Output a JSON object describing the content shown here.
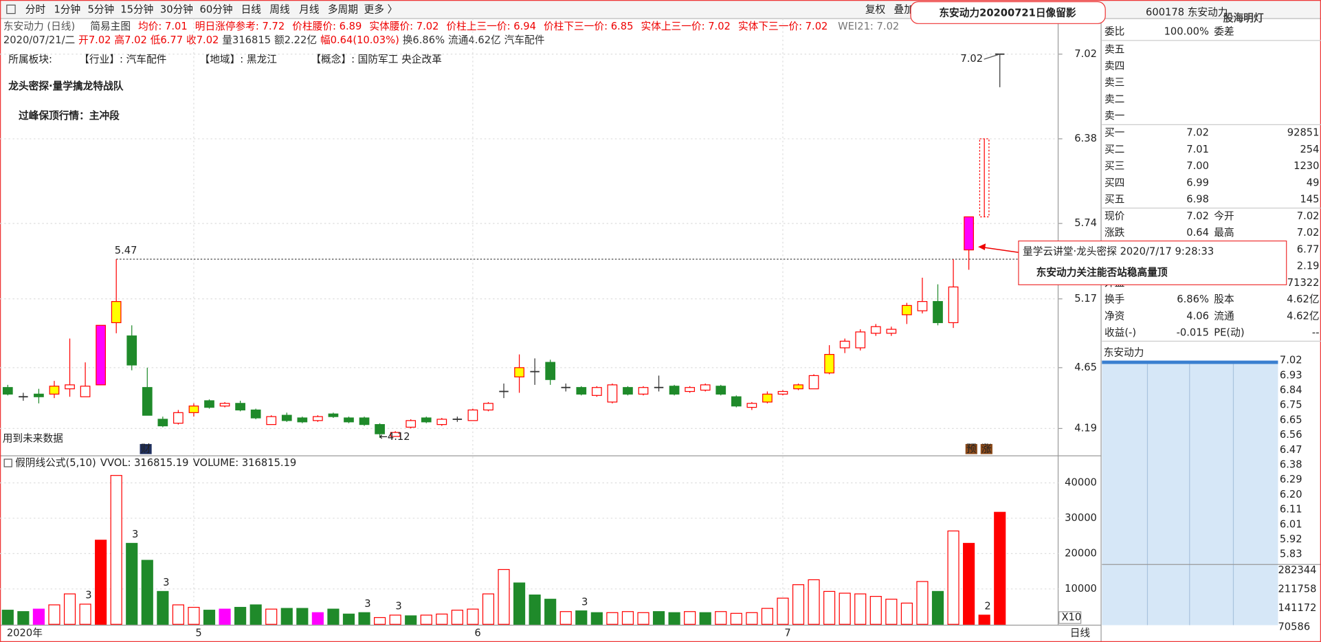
{
  "toolbar": {
    "periods": [
      "分时",
      "1分钟",
      "5分钟",
      "15分钟",
      "30分钟",
      "60分钟",
      "日线",
      "周线",
      "月线",
      "多周期",
      "更多 〉"
    ],
    "active": 6,
    "right": [
      "复权",
      "叠加"
    ]
  },
  "stamp": "东安动力20200721日像留影",
  "code": "600178 东安动力",
  "watermark": "股海明灯",
  "header": {
    "name": "东安动力 (日线)",
    "template": "简易主图",
    "indicators": [
      "均价: 7.01",
      "明日涨停参考: 7.72",
      "价柱腰价: 6.89",
      "实体腰价: 7.02",
      "价柱上三一价: 6.94",
      "价柱下三一价: 6.85",
      "实体上三一价: 7.02",
      "实体下三一价: 7.02"
    ],
    "wei": "WEI21: 7.02",
    "bar_info": [
      {
        "text": "2020/07/21/二",
        "color": "#333"
      },
      {
        "text": "开7.02",
        "color": "#e00"
      },
      {
        "text": "高7.02",
        "color": "#e00"
      },
      {
        "text": "低6.77",
        "color": "#e00"
      },
      {
        "text": "收7.02",
        "color": "#e00"
      },
      {
        "text": "量316815",
        "color": "#333"
      },
      {
        "text": "额2.22亿",
        "color": "#333"
      },
      {
        "text": "幅0.64(10.03%)",
        "color": "#e00"
      },
      {
        "text": "换6.86%",
        "color": "#333"
      },
      {
        "text": "流通4.62亿",
        "color": "#333"
      },
      {
        "text": "汽车配件",
        "color": "#333"
      }
    ],
    "sector": [
      "所属板块:",
      "【行业】: 汽车配件",
      "【地域】: 黑龙江",
      "【概念】: 国防军工 央企改革"
    ]
  },
  "headline": [
    "龙头密探·量学擒龙特战队",
    "过峰保顶行情：主冲段"
  ],
  "candles": {
    "open": [
      4.5,
      4.43,
      4.45,
      4.45,
      4.49,
      4.43,
      4.52,
      4.99,
      4.89,
      4.5,
      4.26,
      4.23,
      4.31,
      4.4,
      4.36,
      4.38,
      4.33,
      4.22,
      4.29,
      4.27,
      4.25,
      4.3,
      4.27,
      4.27,
      4.22,
      4.13,
      4.2,
      4.27,
      4.22,
      4.26,
      4.25,
      4.33,
      4.47,
      4.58,
      4.62,
      4.69,
      4.5,
      4.5,
      4.44,
      4.39,
      4.5,
      4.45,
      4.5,
      4.51,
      4.47,
      4.48,
      4.51,
      4.43,
      4.35,
      4.39,
      4.45,
      4.49,
      4.49,
      4.61,
      4.8,
      4.8,
      4.91,
      4.91,
      5.05,
      5.08,
      5.15,
      4.99,
      5.54,
      5.79,
      7.02
    ],
    "close": [
      4.45,
      4.43,
      4.43,
      4.51,
      4.52,
      4.51,
      4.97,
      5.15,
      4.67,
      4.29,
      4.21,
      4.31,
      4.36,
      4.35,
      4.38,
      4.33,
      4.27,
      4.28,
      4.25,
      4.24,
      4.28,
      4.28,
      4.24,
      4.22,
      4.15,
      4.16,
      4.25,
      4.24,
      4.26,
      4.26,
      4.33,
      4.38,
      4.47,
      4.65,
      4.62,
      4.56,
      4.5,
      4.45,
      4.5,
      4.52,
      4.45,
      4.5,
      4.5,
      4.45,
      4.5,
      4.52,
      4.45,
      4.36,
      4.38,
      4.45,
      4.47,
      4.52,
      4.59,
      4.75,
      4.85,
      4.92,
      4.96,
      4.94,
      5.12,
      5.15,
      4.99,
      5.26,
      5.79,
      6.38,
      7.02
    ],
    "high": [
      4.52,
      4.46,
      4.49,
      4.55,
      4.87,
      4.69,
      4.97,
      5.47,
      4.97,
      4.65,
      4.28,
      4.33,
      4.38,
      4.41,
      4.39,
      4.4,
      4.34,
      4.29,
      4.31,
      4.28,
      4.29,
      4.31,
      4.28,
      4.28,
      4.23,
      4.17,
      4.26,
      4.28,
      4.27,
      4.28,
      4.34,
      4.39,
      4.53,
      4.75,
      4.72,
      4.71,
      4.53,
      4.51,
      4.51,
      4.53,
      4.51,
      4.51,
      4.59,
      4.52,
      4.51,
      4.53,
      4.52,
      4.44,
      4.39,
      4.47,
      4.48,
      4.53,
      4.6,
      4.82,
      4.87,
      4.94,
      4.98,
      4.96,
      5.14,
      5.33,
      5.28,
      5.47,
      5.79,
      6.38,
      7.02
    ],
    "low": [
      4.44,
      4.4,
      4.38,
      4.42,
      4.43,
      4.43,
      4.52,
      4.91,
      4.63,
      4.29,
      4.2,
      4.22,
      4.28,
      4.34,
      4.35,
      4.32,
      4.26,
      4.22,
      4.24,
      4.23,
      4.24,
      4.27,
      4.23,
      4.21,
      4.12,
      4.13,
      4.19,
      4.23,
      4.21,
      4.24,
      4.25,
      4.32,
      4.42,
      4.46,
      4.52,
      4.52,
      4.47,
      4.44,
      4.43,
      4.38,
      4.44,
      4.44,
      4.47,
      4.44,
      4.46,
      4.47,
      4.44,
      4.35,
      4.33,
      4.38,
      4.44,
      4.48,
      4.49,
      4.6,
      4.76,
      4.78,
      4.89,
      4.89,
      4.98,
      5.06,
      4.97,
      4.95,
      5.39,
      5.79,
      6.77
    ],
    "body_style": [
      "down",
      "flat",
      "down",
      "yellow",
      "up",
      "up",
      "magenta",
      "yellow",
      "down",
      "down",
      "down",
      "up",
      "yellow",
      "down",
      "up",
      "down",
      "down",
      "up",
      "down",
      "down",
      "up",
      "down",
      "down",
      "down",
      "down",
      "up",
      "up",
      "down",
      "up",
      "flat",
      "up",
      "up",
      "flat",
      "yellow",
      "flat",
      "down",
      "flat",
      "down",
      "up",
      "up",
      "down",
      "up",
      "flat",
      "down",
      "up",
      "up",
      "down",
      "down",
      "up",
      "yellow",
      "up",
      "yellow",
      "up",
      "yellow",
      "up",
      "up",
      "up",
      "up",
      "yellow",
      "up",
      "down",
      "up",
      "magenta",
      "dashed",
      "flat"
    ],
    "style_colors": {
      "up": "#ff0000",
      "down": "#1f8a2a",
      "yellow": "#ffff00",
      "magenta": "#ff00ff",
      "dashed": "#ff0000",
      "flat": "#333333"
    },
    "ylim": [
      3.99,
      7.27
    ],
    "yticks": [
      4.19,
      4.65,
      5.17,
      5.74,
      6.38,
      7.02
    ],
    "peak": 5.47,
    "low_label": "←4.12",
    "future_note": "用到未来数据",
    "icons": [
      "财",
      "预",
      "涨"
    ]
  },
  "volume": {
    "title": "假阴线公式(5,10)",
    "vvol": "VVOL: 316815.19",
    "vol": "VOLUME: 316815.19",
    "unit": "X10",
    "values": [
      4000,
      3600,
      4300,
      5500,
      8600,
      5700,
      23800,
      42100,
      22900,
      18100,
      9300,
      5500,
      4800,
      4000,
      4300,
      4800,
      5500,
      4300,
      4500,
      4500,
      3300,
      4300,
      2900,
      3300,
      1900,
      2600,
      2400,
      2600,
      2900,
      4000,
      4300,
      8600,
      15500,
      11700,
      8300,
      7100,
      3600,
      3800,
      3300,
      3300,
      3600,
      3300,
      3600,
      3300,
      3600,
      3300,
      3600,
      3100,
      3300,
      4500,
      7400,
      11200,
      12600,
      9300,
      8800,
      8600,
      7900,
      7100,
      6000,
      12100,
      9300,
      26400,
      22900,
      2600,
      31682
    ],
    "colors": [
      "#1f8a2a",
      "#1f8a2a",
      "#ff00ff",
      "#ff0000",
      "#ff0000",
      "#ff0000",
      "#ff0000",
      "#ff0000",
      "#1f8a2a",
      "#1f8a2a",
      "#1f8a2a",
      "#ff0000",
      "#ff0000",
      "#1f8a2a",
      "#ff00ff",
      "#1f8a2a",
      "#1f8a2a",
      "#ff0000",
      "#1f8a2a",
      "#1f8a2a",
      "#ff00ff",
      "#1f8a2a",
      "#1f8a2a",
      "#1f8a2a",
      "#ff0000",
      "#ff0000",
      "#1f8a2a",
      "#ff0000",
      "#ff0000",
      "#ff0000",
      "#ff0000",
      "#ff0000",
      "#ff0000",
      "#1f8a2a",
      "#1f8a2a",
      "#1f8a2a",
      "#ff0000",
      "#1f8a2a",
      "#1f8a2a",
      "#ff0000",
      "#ff0000",
      "#ff0000",
      "#1f8a2a",
      "#1f8a2a",
      "#ff0000",
      "#1f8a2a",
      "#ff0000",
      "#ff0000",
      "#ff0000",
      "#ff0000",
      "#ff0000",
      "#ff0000",
      "#ff0000",
      "#ff0000",
      "#ff0000",
      "#ff0000",
      "#ff0000",
      "#ff0000",
      "#ff0000",
      "#ff0000",
      "#1f8a2a",
      "#ff0000",
      "#ff0000",
      "#ff0000",
      "#ff0000"
    ],
    "hollow": [
      false,
      false,
      false,
      true,
      true,
      true,
      false,
      true,
      false,
      false,
      false,
      true,
      true,
      false,
      false,
      false,
      false,
      true,
      false,
      false,
      false,
      false,
      false,
      false,
      true,
      true,
      false,
      true,
      true,
      true,
      true,
      true,
      true,
      false,
      false,
      false,
      true,
      false,
      false,
      true,
      true,
      true,
      false,
      false,
      true,
      false,
      true,
      true,
      true,
      true,
      true,
      true,
      true,
      true,
      true,
      true,
      true,
      true,
      true,
      true,
      false,
      true,
      false,
      false,
      false
    ],
    "ylim": [
      0,
      46700
    ],
    "yticks": [
      10000,
      20000,
      30000,
      40000
    ],
    "annotations": [
      {
        "index": 5,
        "text": "3"
      },
      {
        "index": 8,
        "text": "3"
      },
      {
        "index": 10,
        "text": "3"
      },
      {
        "index": 23,
        "text": "3"
      },
      {
        "index": 25,
        "text": "3"
      },
      {
        "index": 37,
        "text": "3"
      },
      {
        "index": 63,
        "text": "2"
      }
    ]
  },
  "x_labels": [
    {
      "index": 0,
      "label": "2020年"
    },
    {
      "index": 12,
      "label": "5"
    },
    {
      "index": 30,
      "label": "6"
    },
    {
      "index": 50,
      "label": "7"
    }
  ],
  "period_tag": "日线",
  "callout": {
    "source": "量学云讲堂·龙头密探 2020/7/17 9:28:33",
    "text": "东安动力关注能否站稳高量顶"
  },
  "quote": {
    "ratio": {
      "label": "委比",
      "value": "100.00%",
      "label2": "委差"
    },
    "sell": [
      "卖五",
      "卖四",
      "卖三",
      "卖二",
      "卖一"
    ],
    "buy": [
      {
        "label": "买一",
        "price": "7.02",
        "volume": "92851"
      },
      {
        "label": "买二",
        "price": "7.01",
        "volume": "254"
      },
      {
        "label": "买三",
        "price": "7.00",
        "volume": "1230"
      },
      {
        "label": "买四",
        "price": "6.99",
        "volume": "49"
      },
      {
        "label": "买五",
        "price": "6.98",
        "volume": "145"
      }
    ],
    "rows": [
      {
        "l1": "现价",
        "v1": "7.02",
        "c1": "#e00",
        "l2": "今开",
        "v2": "7.02",
        "c2": "#e00"
      },
      {
        "l1": "涨跌",
        "v1": "0.64",
        "c1": "#e00",
        "l2": "最高",
        "v2": "7.02",
        "c2": "#e00"
      },
      {
        "v2": "6.77",
        "c2": "#e00"
      },
      {
        "v2": "2.19",
        "c2": "#e00"
      },
      {
        "l1": "外盘",
        "v2": "71322",
        "c2": "#1a8a1a"
      },
      {
        "l1": "换手",
        "v1": "6.86%",
        "c1": "#222",
        "l2": "股本",
        "v2": "4.62亿",
        "c2": "#222"
      },
      {
        "l1": "净资",
        "v1": "4.06",
        "c1": "#222",
        "l2": "流通",
        "v2": "4.62亿",
        "c2": "#222"
      },
      {
        "l1": "收益(-)",
        "v1": "-0.015",
        "c1": "#222",
        "l2": "PE(动)",
        "v2": "--",
        "c2": "#222"
      }
    ]
  },
  "mini": {
    "title": "东安动力",
    "price_ticks": [
      "7.02",
      "6.93",
      "6.84",
      "6.75",
      "6.65",
      "6.56",
      "6.47",
      "6.38",
      "6.29",
      "6.20",
      "6.11",
      "6.01",
      "5.92",
      "5.83"
    ],
    "tick_colors": [
      "#e00",
      "#e00",
      "#e00",
      "#e00",
      "#e00",
      "#e00",
      "#e00",
      "#222",
      "#1a8a1a",
      "#1a8a1a",
      "#1a8a1a",
      "#1a8a1a",
      "#1a8a1a",
      "#1a8a1a"
    ],
    "volume_ticks": [
      "282344",
      "211758",
      "141172",
      "70586"
    ]
  }
}
